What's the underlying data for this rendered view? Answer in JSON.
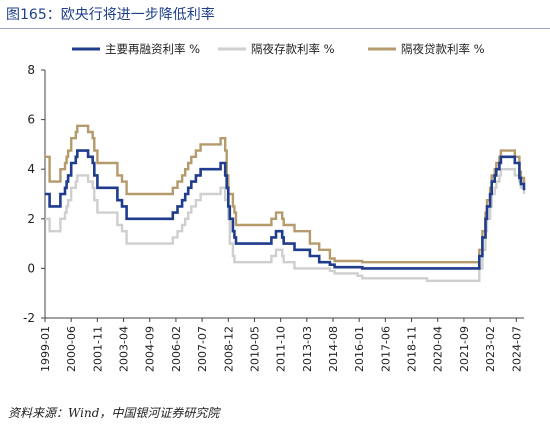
{
  "header": {
    "title": "图165：欧央行将进一步降低利率"
  },
  "footer": {
    "source": "资料来源：Wind，中国银河证券研究院"
  },
  "chart_data": {
    "type": "line",
    "title": "图165：欧央行将进一步降低利率",
    "xlabel": "",
    "ylabel": "",
    "ylim": [
      -2,
      8
    ],
    "yticks": [
      "-2",
      "0",
      "2",
      "4",
      "6",
      "8"
    ],
    "xtick_labels": [
      "1999-01",
      "2000-06",
      "2001-11",
      "2003-04",
      "2004-09",
      "2006-02",
      "2007-07",
      "2008-12",
      "2010-05",
      "2011-10",
      "2013-03",
      "2014-08",
      "2016-01",
      "2017-06",
      "2018-11",
      "2020-04",
      "2021-09",
      "2023-02",
      "2024-07"
    ],
    "grid": false,
    "legend_position": "top",
    "colors": {
      "main": "#1f3c8d",
      "deposit": "#cfcfcf",
      "lending": "#b59a6b"
    },
    "series": [
      {
        "name": "主要再融资利率 %",
        "color": "#1f3c8d",
        "points": [
          [
            "1999-01",
            3.0
          ],
          [
            "1999-04",
            2.5
          ],
          [
            "1999-11",
            3.0
          ],
          [
            "2000-02",
            3.25
          ],
          [
            "2000-03",
            3.5
          ],
          [
            "2000-04",
            3.75
          ],
          [
            "2000-06",
            4.25
          ],
          [
            "2000-09",
            4.5
          ],
          [
            "2000-10",
            4.75
          ],
          [
            "2001-05",
            4.5
          ],
          [
            "2001-08",
            4.25
          ],
          [
            "2001-09",
            3.75
          ],
          [
            "2001-11",
            3.25
          ],
          [
            "2002-12",
            2.75
          ],
          [
            "2003-03",
            2.5
          ],
          [
            "2003-06",
            2.0
          ],
          [
            "2005-12",
            2.25
          ],
          [
            "2006-03",
            2.5
          ],
          [
            "2006-06",
            2.75
          ],
          [
            "2006-08",
            3.0
          ],
          [
            "2006-10",
            3.25
          ],
          [
            "2006-12",
            3.5
          ],
          [
            "2007-03",
            3.75
          ],
          [
            "2007-06",
            4.0
          ],
          [
            "2008-07",
            4.25
          ],
          [
            "2008-10",
            3.75
          ],
          [
            "2008-11",
            3.25
          ],
          [
            "2008-12",
            2.5
          ],
          [
            "2009-01",
            2.0
          ],
          [
            "2009-03",
            1.5
          ],
          [
            "2009-04",
            1.25
          ],
          [
            "2009-05",
            1.0
          ],
          [
            "2011-04",
            1.25
          ],
          [
            "2011-07",
            1.5
          ],
          [
            "2011-11",
            1.25
          ],
          [
            "2011-12",
            1.0
          ],
          [
            "2012-07",
            0.75
          ],
          [
            "2013-05",
            0.5
          ],
          [
            "2013-11",
            0.25
          ],
          [
            "2014-06",
            0.15
          ],
          [
            "2014-09",
            0.05
          ],
          [
            "2016-03",
            0.0
          ],
          [
            "2022-07",
            0.5
          ],
          [
            "2022-09",
            1.25
          ],
          [
            "2022-11",
            2.0
          ],
          [
            "2022-12",
            2.5
          ],
          [
            "2023-02",
            3.0
          ],
          [
            "2023-03",
            3.5
          ],
          [
            "2023-05",
            3.75
          ],
          [
            "2023-06",
            4.0
          ],
          [
            "2023-08",
            4.25
          ],
          [
            "2023-09",
            4.5
          ],
          [
            "2024-06",
            4.25
          ],
          [
            "2024-09",
            3.65
          ],
          [
            "2024-10",
            3.4
          ],
          [
            "2024-12",
            3.15
          ]
        ]
      },
      {
        "name": "隔夜存款利率 %",
        "color": "#cfcfcf",
        "points": [
          [
            "1999-01",
            2.0
          ],
          [
            "1999-04",
            1.5
          ],
          [
            "1999-11",
            2.0
          ],
          [
            "2000-02",
            2.25
          ],
          [
            "2000-03",
            2.5
          ],
          [
            "2000-04",
            2.75
          ],
          [
            "2000-06",
            3.25
          ],
          [
            "2000-09",
            3.5
          ],
          [
            "2000-10",
            3.75
          ],
          [
            "2001-05",
            3.5
          ],
          [
            "2001-08",
            3.25
          ],
          [
            "2001-09",
            2.75
          ],
          [
            "2001-11",
            2.25
          ],
          [
            "2002-12",
            1.75
          ],
          [
            "2003-03",
            1.5
          ],
          [
            "2003-06",
            1.0
          ],
          [
            "2005-12",
            1.25
          ],
          [
            "2006-03",
            1.5
          ],
          [
            "2006-06",
            1.75
          ],
          [
            "2006-08",
            2.0
          ],
          [
            "2006-10",
            2.25
          ],
          [
            "2006-12",
            2.5
          ],
          [
            "2007-03",
            2.75
          ],
          [
            "2007-06",
            3.0
          ],
          [
            "2008-07",
            3.25
          ],
          [
            "2008-10",
            2.75
          ],
          [
            "2008-11",
            2.75
          ],
          [
            "2008-12",
            2.0
          ],
          [
            "2009-01",
            1.0
          ],
          [
            "2009-03",
            0.5
          ],
          [
            "2009-04",
            0.25
          ],
          [
            "2011-04",
            0.5
          ],
          [
            "2011-07",
            0.75
          ],
          [
            "2011-11",
            0.5
          ],
          [
            "2011-12",
            0.25
          ],
          [
            "2012-07",
            0.0
          ],
          [
            "2014-06",
            -0.1
          ],
          [
            "2014-09",
            -0.2
          ],
          [
            "2015-12",
            -0.3
          ],
          [
            "2016-03",
            -0.4
          ],
          [
            "2019-09",
            -0.5
          ],
          [
            "2022-07",
            0.0
          ],
          [
            "2022-09",
            0.75
          ],
          [
            "2022-11",
            1.5
          ],
          [
            "2022-12",
            2.0
          ],
          [
            "2023-02",
            2.5
          ],
          [
            "2023-03",
            3.0
          ],
          [
            "2023-05",
            3.25
          ],
          [
            "2023-06",
            3.5
          ],
          [
            "2023-08",
            3.75
          ],
          [
            "2023-09",
            4.0
          ],
          [
            "2024-06",
            3.75
          ],
          [
            "2024-09",
            3.5
          ],
          [
            "2024-10",
            3.25
          ],
          [
            "2024-12",
            3.0
          ]
        ]
      },
      {
        "name": "隔夜贷款利率 %",
        "color": "#b59a6b",
        "points": [
          [
            "1999-01",
            4.5
          ],
          [
            "1999-04",
            3.5
          ],
          [
            "1999-11",
            4.0
          ],
          [
            "2000-02",
            4.25
          ],
          [
            "2000-03",
            4.5
          ],
          [
            "2000-04",
            4.75
          ],
          [
            "2000-06",
            5.25
          ],
          [
            "2000-09",
            5.5
          ],
          [
            "2000-10",
            5.75
          ],
          [
            "2001-05",
            5.5
          ],
          [
            "2001-08",
            5.25
          ],
          [
            "2001-09",
            4.75
          ],
          [
            "2001-11",
            4.25
          ],
          [
            "2002-12",
            3.75
          ],
          [
            "2003-03",
            3.5
          ],
          [
            "2003-06",
            3.0
          ],
          [
            "2005-12",
            3.25
          ],
          [
            "2006-03",
            3.5
          ],
          [
            "2006-06",
            3.75
          ],
          [
            "2006-08",
            4.0
          ],
          [
            "2006-10",
            4.25
          ],
          [
            "2006-12",
            4.5
          ],
          [
            "2007-03",
            4.75
          ],
          [
            "2007-06",
            5.0
          ],
          [
            "2008-07",
            5.25
          ],
          [
            "2008-10",
            4.75
          ],
          [
            "2008-11",
            3.75
          ],
          [
            "2008-12",
            3.0
          ],
          [
            "2009-01",
            3.0
          ],
          [
            "2009-03",
            2.5
          ],
          [
            "2009-04",
            2.25
          ],
          [
            "2009-05",
            1.75
          ],
          [
            "2011-04",
            2.0
          ],
          [
            "2011-07",
            2.25
          ],
          [
            "2011-11",
            2.0
          ],
          [
            "2011-12",
            1.75
          ],
          [
            "2012-07",
            1.5
          ],
          [
            "2013-05",
            1.0
          ],
          [
            "2013-11",
            0.75
          ],
          [
            "2014-06",
            0.4
          ],
          [
            "2014-09",
            0.3
          ],
          [
            "2016-03",
            0.25
          ],
          [
            "2022-07",
            0.75
          ],
          [
            "2022-09",
            1.5
          ],
          [
            "2022-11",
            2.25
          ],
          [
            "2022-12",
            2.75
          ],
          [
            "2023-02",
            3.25
          ],
          [
            "2023-03",
            3.75
          ],
          [
            "2023-05",
            4.0
          ],
          [
            "2023-06",
            4.25
          ],
          [
            "2023-08",
            4.5
          ],
          [
            "2023-09",
            4.75
          ],
          [
            "2024-06",
            4.5
          ],
          [
            "2024-09",
            3.9
          ],
          [
            "2024-10",
            3.65
          ],
          [
            "2024-12",
            3.4
          ]
        ]
      }
    ]
  }
}
